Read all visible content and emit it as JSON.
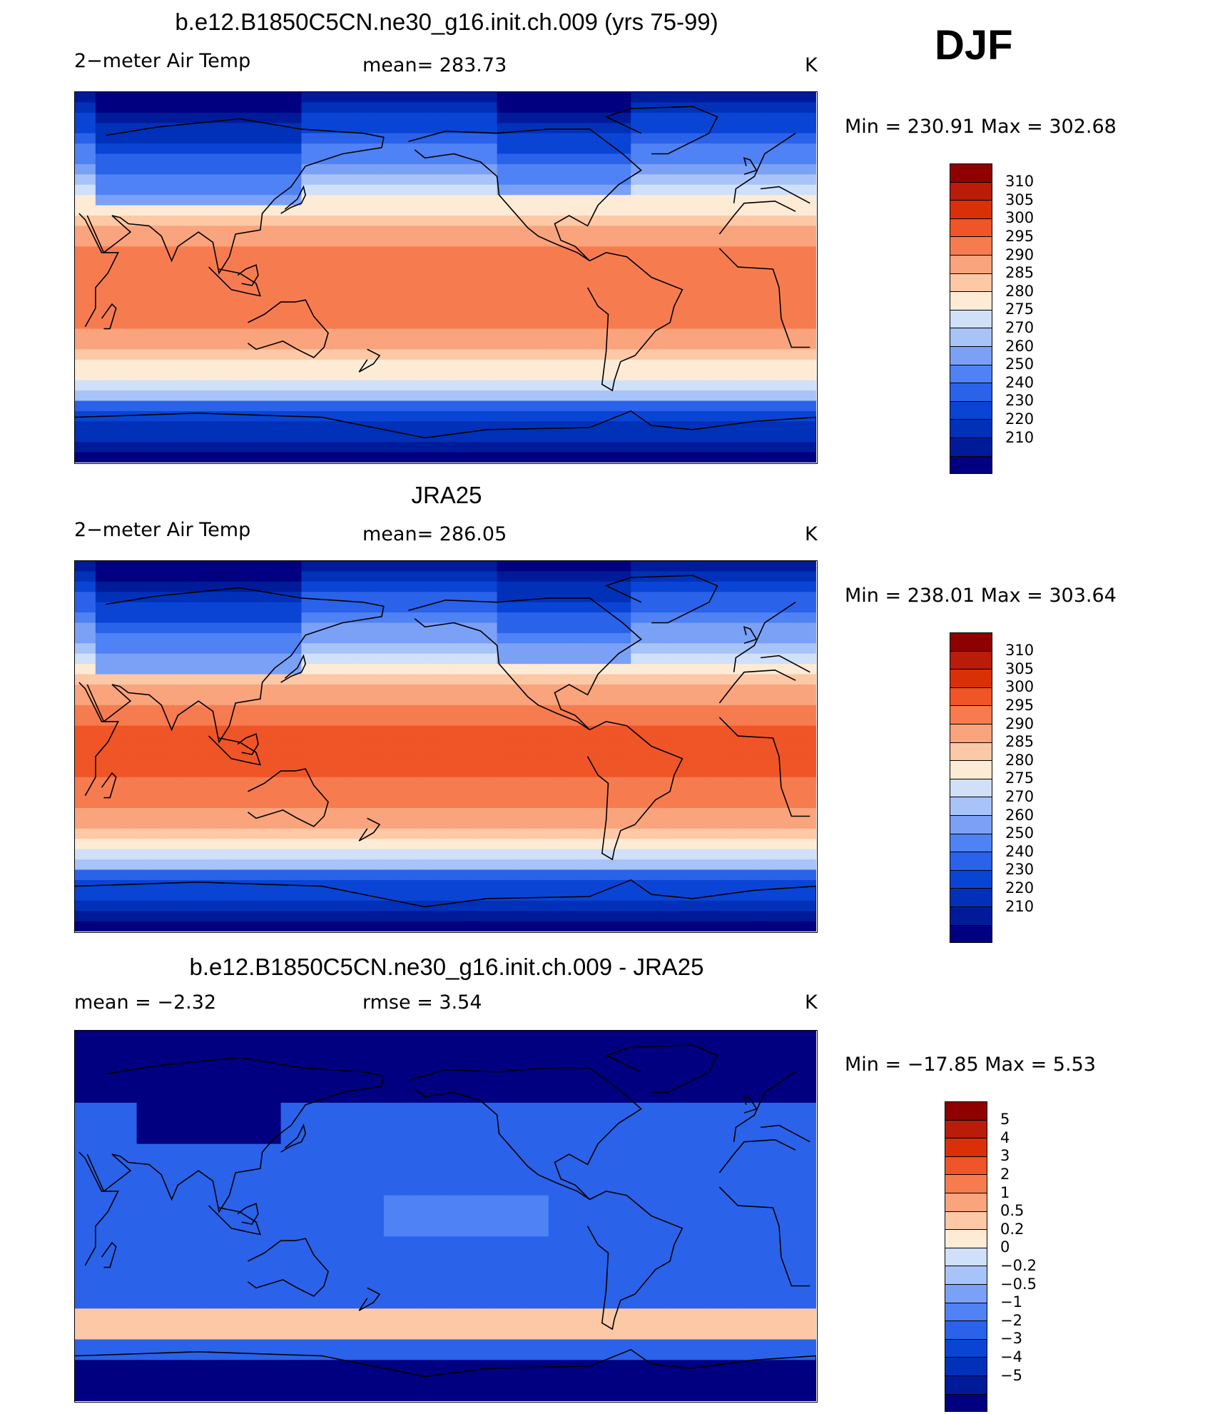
{
  "season": "DJF",
  "units": "K",
  "palettes": {
    "temp": [
      "#000080",
      "#001b9a",
      "#0031b8",
      "#0a44d4",
      "#2a62ea",
      "#4f82f5",
      "#7ba1f7",
      "#a8c3f7",
      "#d0e0f9",
      "#fdebd6",
      "#fcc8a6",
      "#f9a47c",
      "#f67c50",
      "#ef5526",
      "#d93008",
      "#b91c08",
      "#8f0000"
    ],
    "diff": [
      "#000080",
      "#001b9a",
      "#0031b8",
      "#0a44d4",
      "#2a62ea",
      "#4f82f5",
      "#7ba1f7",
      "#a8c3f7",
      "#d0e0f9",
      "#fdebd6",
      "#fcc8a6",
      "#f9a47c",
      "#f67c50",
      "#ef5526",
      "#d93008",
      "#b91c08",
      "#8f0000"
    ]
  },
  "chart_data": [
    {
      "type": "heatmap",
      "title": "b.e12.B1850C5CN.ne30_g16.init.ch.009 (yrs 75-99)",
      "left_label": "2−meter Air Temp",
      "stat_text": "mean=  283.73",
      "units": "K",
      "min": 230.91,
      "max": 302.68,
      "minmax_text": "Min  =  230.91  Max  =  302.68",
      "legend_levels": [
        "310",
        "305",
        "300",
        "295",
        "290",
        "285",
        "280",
        "275",
        "270",
        "260",
        "250",
        "240",
        "230",
        "220",
        "210"
      ],
      "field": "model_t2m"
    },
    {
      "type": "heatmap",
      "title": "JRA25",
      "left_label": "2−meter Air Temp",
      "stat_text": "mean=  286.05",
      "units": "K",
      "min": 238.01,
      "max": 303.64,
      "minmax_text": "Min  =  238.01  Max  =  303.64",
      "legend_levels": [
        "310",
        "305",
        "300",
        "295",
        "290",
        "285",
        "280",
        "275",
        "270",
        "260",
        "250",
        "240",
        "230",
        "220",
        "210"
      ],
      "field": "obs_t2m"
    },
    {
      "type": "heatmap",
      "title": "b.e12.B1850C5CN.ne30_g16.init.ch.009 - JRA25",
      "left_label": "mean =    −2.32",
      "stat_text": "rmse =     3.54",
      "units": "K",
      "min": -17.85,
      "max": 5.53,
      "minmax_text": "Min  =  −17.85  Max  =     5.53",
      "legend_levels": [
        "5",
        "4",
        "3",
        "2",
        "1",
        "0.5",
        "0.2",
        "0",
        "−0.2",
        "−0.5",
        "−1",
        "−2",
        "−3",
        "−4",
        "−5"
      ],
      "field": "diff"
    }
  ]
}
